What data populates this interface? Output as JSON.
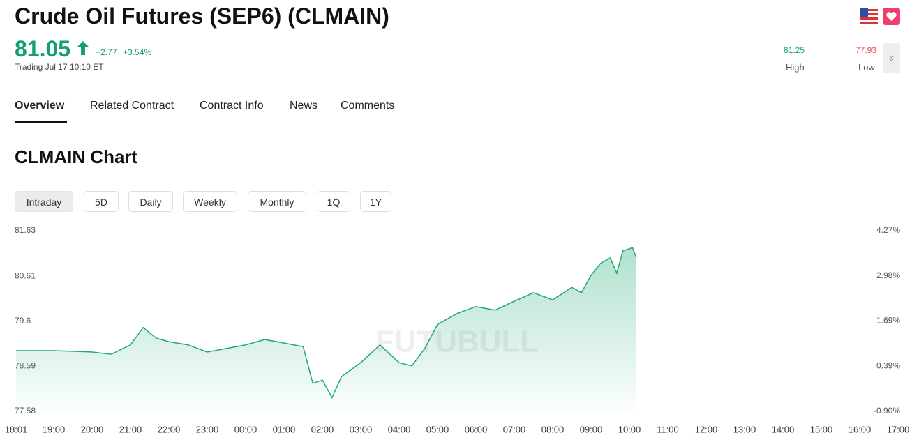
{
  "header": {
    "title": "Crude Oil Futures (SEP6) (CLMAIN)",
    "price": "81.05",
    "change": "+2.77",
    "change_pct": "+3.54%",
    "status": "Trading Jul 17 10:10 ET",
    "high": "81.25",
    "high_label": "High",
    "low": "77.93",
    "low_label": "Low"
  },
  "tabs": [
    "Overview",
    "Related Contract",
    "Contract Info",
    "News",
    "Comments"
  ],
  "chart_heading": "CLMAIN Chart",
  "ranges": [
    "Intraday",
    "5D",
    "Daily",
    "Weekly",
    "Monthly",
    "1Q",
    "1Y"
  ],
  "watermark": "FUTUBULL",
  "chart_data": {
    "type": "line",
    "color": "#1fa971",
    "x": [
      0.02,
      1,
      2,
      2.5,
      3,
      3.33,
      3.67,
      4,
      4.5,
      5,
      5.5,
      6,
      6.5,
      7,
      7.5,
      7.75,
      8,
      8.25,
      8.5,
      9,
      9.5,
      10,
      10.33,
      10.67,
      11,
      11.5,
      12,
      12.5,
      13,
      13.5,
      14,
      14.5,
      14.75,
      15,
      15.25,
      15.5,
      15.67,
      15.83,
      16.08,
      16.17
    ],
    "values": [
      78.94,
      78.94,
      78.91,
      78.86,
      79.07,
      79.46,
      79.22,
      79.14,
      79.07,
      78.91,
      78.99,
      79.07,
      79.19,
      79.11,
      79.03,
      78.21,
      78.28,
      77.89,
      78.36,
      78.67,
      79.07,
      78.67,
      78.6,
      78.99,
      79.53,
      79.77,
      79.93,
      79.85,
      80.05,
      80.24,
      80.08,
      80.36,
      80.24,
      80.63,
      80.9,
      81.02,
      80.68,
      81.18,
      81.25,
      81.05
    ],
    "xlim": [
      0,
      23
    ],
    "xticks": [
      {
        "value": 0.02,
        "label": "18:01"
      },
      {
        "value": 1,
        "label": "19:00"
      },
      {
        "value": 2,
        "label": "20:00"
      },
      {
        "value": 3,
        "label": "21:00"
      },
      {
        "value": 4,
        "label": "22:00"
      },
      {
        "value": 5,
        "label": "23:00"
      },
      {
        "value": 6,
        "label": "00:00"
      },
      {
        "value": 7,
        "label": "01:00"
      },
      {
        "value": 8,
        "label": "02:00"
      },
      {
        "value": 9,
        "label": "03:00"
      },
      {
        "value": 10,
        "label": "04:00"
      },
      {
        "value": 11,
        "label": "05:00"
      },
      {
        "value": 12,
        "label": "06:00"
      },
      {
        "value": 13,
        "label": "07:00"
      },
      {
        "value": 14,
        "label": "08:00"
      },
      {
        "value": 15,
        "label": "09:00"
      },
      {
        "value": 16,
        "label": "10:00"
      },
      {
        "value": 17,
        "label": "11:00"
      },
      {
        "value": 18,
        "label": "12:00"
      },
      {
        "value": 19,
        "label": "13:00"
      },
      {
        "value": 20,
        "label": "14:00"
      },
      {
        "value": 21,
        "label": "15:00"
      },
      {
        "value": 22,
        "label": "16:00"
      },
      {
        "value": 23,
        "label": "17:00"
      }
    ],
    "ylim": [
      77.58,
      81.63
    ],
    "yticks": [
      81.63,
      80.61,
      79.6,
      78.59,
      77.58
    ],
    "y2lim": [
      -0.9,
      4.27
    ],
    "y2ticks": [
      {
        "value": 4.27,
        "label": "4.27%"
      },
      {
        "value": 2.98,
        "label": "2.98%"
      },
      {
        "value": 1.69,
        "label": "1.69%"
      },
      {
        "value": 0.39,
        "label": "0.39%"
      },
      {
        "value": -0.9,
        "label": "-0.90%"
      }
    ]
  }
}
